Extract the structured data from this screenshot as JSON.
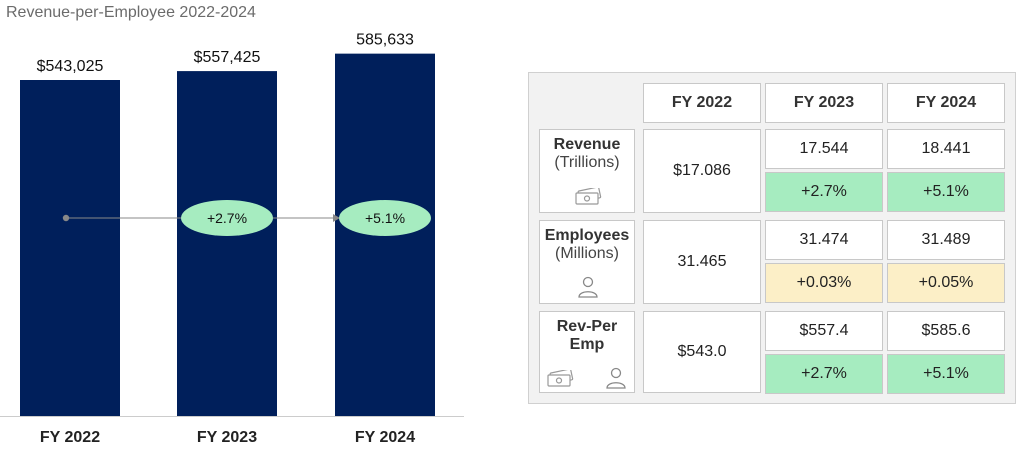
{
  "title": "Revenue-per-Employee 2022-2024",
  "chart_data": {
    "type": "bar",
    "categories": [
      "FY 2022",
      "FY 2023",
      "FY 2024"
    ],
    "values": [
      543025,
      557425,
      585633
    ],
    "value_labels": [
      "$543,025",
      "$557,425",
      "585,633"
    ],
    "growth_labels": [
      "+2.7%",
      "+5.1%"
    ],
    "ylim": [
      0,
      640000
    ],
    "bar_color": "#001f5b",
    "bubble_color": "#a6ecc0"
  },
  "table": {
    "headers": [
      "FY 2022",
      "FY 2023",
      "FY 2024"
    ],
    "rows": [
      {
        "label": "Revenue",
        "sublabel": "(Trillions)",
        "icons": [
          "money-icon"
        ],
        "fy2022": "$17.086",
        "values": [
          "17.544",
          "18.441"
        ],
        "changes": [
          "+2.7%",
          "+5.1%"
        ],
        "change_color": "#a6ecc0"
      },
      {
        "label": "Employees",
        "sublabel": "(Millions)",
        "icons": [
          "person-icon"
        ],
        "fy2022": "31.465",
        "values": [
          "31.474",
          "31.489"
        ],
        "changes": [
          "+0.03%",
          "+0.05%"
        ],
        "change_color": "#fcefc7"
      },
      {
        "label": "Rev-Per",
        "sublabel": "Emp",
        "icons": [
          "money-icon",
          "person-icon"
        ],
        "fy2022": "$543.0",
        "values": [
          "$557.4",
          "$585.6"
        ],
        "changes": [
          "+2.7%",
          "+5.1%"
        ],
        "change_color": "#a6ecc0"
      }
    ]
  }
}
